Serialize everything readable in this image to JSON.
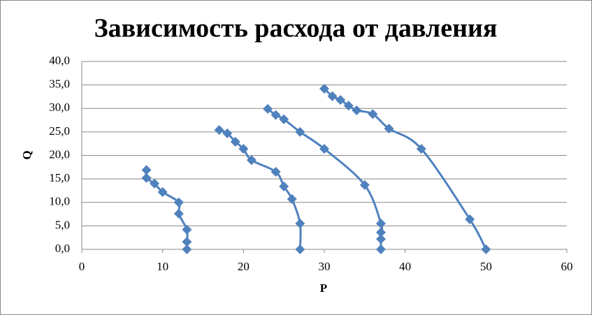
{
  "chart_data": {
    "type": "scatter",
    "title": "Зависимость расхода от давления",
    "x_label": "P",
    "y_label": "Q",
    "smooth": true,
    "grid": true,
    "xlim": [
      0,
      60
    ],
    "xticks": [
      0,
      10,
      20,
      30,
      40,
      50,
      60
    ],
    "ylim": [
      0,
      40
    ],
    "yticks": [
      {
        "value": 0,
        "label": "0,0"
      },
      {
        "value": 5,
        "label": "5,0"
      },
      {
        "value": 10,
        "label": "10,0"
      },
      {
        "value": 15,
        "label": "15,0"
      },
      {
        "value": 20,
        "label": "20,0"
      },
      {
        "value": 25,
        "label": "25,0"
      },
      {
        "value": 30,
        "label": "30,0"
      },
      {
        "value": 35,
        "label": "35,0"
      },
      {
        "value": 40,
        "label": "40,0"
      }
    ],
    "series": [
      {
        "color": "#4f81bd",
        "x": [
          8,
          8,
          9,
          10,
          12,
          12,
          13,
          13,
          13
        ],
        "values": [
          16.9,
          15.2,
          14.0,
          12.2,
          10.0,
          7.6,
          4.2,
          1.6,
          0
        ]
      },
      {
        "color": "#4f81bd",
        "x": [
          17,
          18,
          19,
          20,
          21,
          24,
          25,
          26,
          27,
          27
        ],
        "values": [
          25.4,
          24.7,
          22.9,
          21.4,
          19.0,
          16.5,
          13.4,
          10.7,
          5.5,
          0
        ]
      },
      {
        "color": "#4f81bd",
        "x": [
          23,
          24,
          25,
          27,
          30,
          35,
          37,
          37,
          37,
          37
        ],
        "values": [
          29.9,
          28.6,
          27.7,
          25.0,
          21.4,
          13.7,
          5.5,
          3.6,
          2.2,
          0
        ]
      },
      {
        "color": "#4f81bd",
        "x": [
          30,
          31,
          32,
          33,
          34,
          36,
          38,
          42,
          48,
          50
        ],
        "values": [
          34.2,
          32.6,
          31.8,
          30.6,
          29.6,
          28.8,
          25.7,
          21.4,
          6.4,
          0
        ]
      }
    ]
  }
}
